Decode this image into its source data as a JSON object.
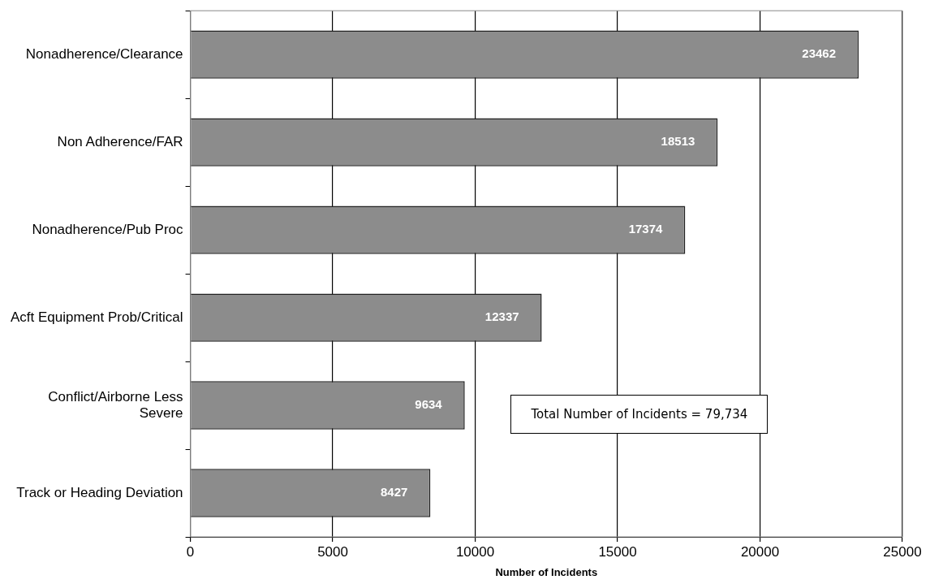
{
  "chart_data": {
    "type": "bar",
    "orientation": "horizontal",
    "categories": [
      "Nonadherence/Clearance",
      "Non Adherence/FAR",
      "Nonadherence/Pub Proc",
      "Acft Equipment Prob/Critical",
      "Conflict/Airborne Less Severe",
      "Track or Heading Deviation"
    ],
    "values": [
      23462,
      18513,
      17374,
      12337,
      9634,
      8427
    ],
    "color": "#8c8c8c",
    "xlim": [
      0,
      25000
    ],
    "xticks": [
      0,
      5000,
      10000,
      15000,
      20000,
      25000
    ],
    "xlabel": "Number of Incidents",
    "grid": "x",
    "legend": false,
    "data_labels": true,
    "annotations": [
      "Total Number of Incidents = 79,734"
    ]
  }
}
